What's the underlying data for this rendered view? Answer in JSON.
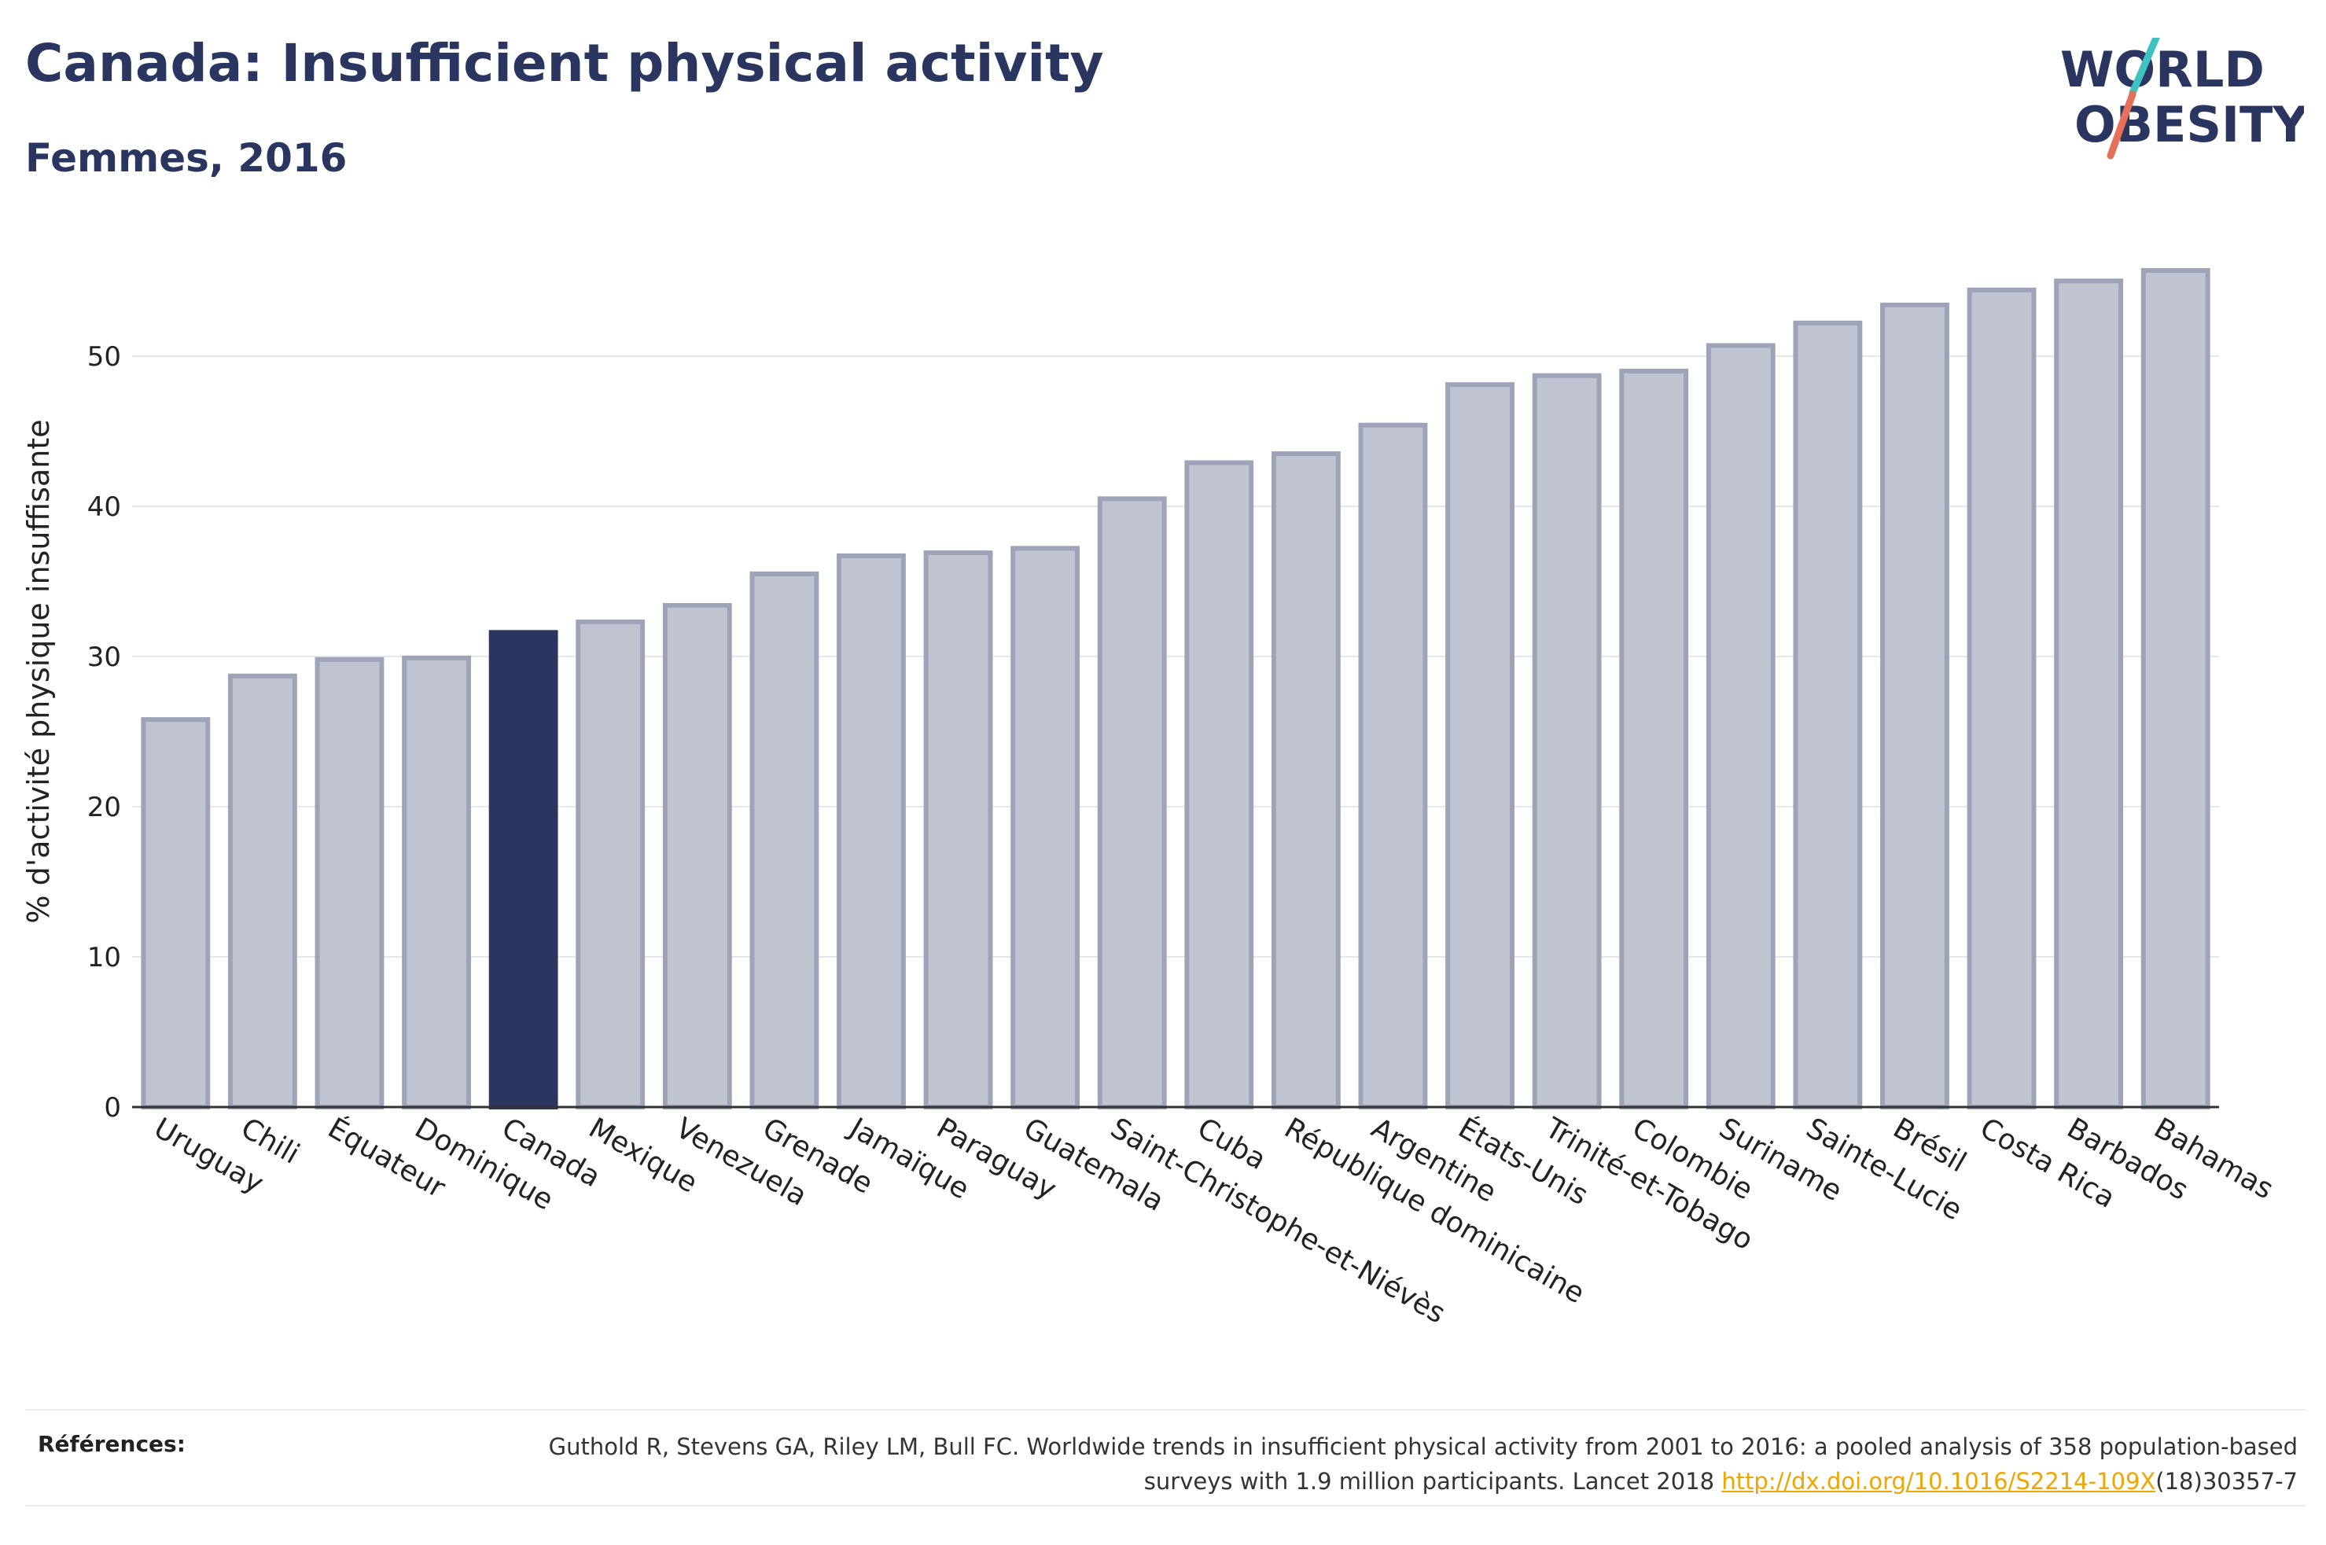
{
  "header": {
    "title": "Canada: Insufficient physical activity",
    "subtitle": "Femmes, 2016"
  },
  "logo": {
    "line1": "WORLD",
    "line2": "OBESITY",
    "accent_colors": [
      "#3ec1c1",
      "#e8705a"
    ]
  },
  "colors": {
    "highlight": "#2a3560",
    "bar_fill": "#c0c3d0",
    "bar_stroke": "#9ea3b8",
    "text": "#2a3560",
    "link": "#f0a500"
  },
  "chart_data": {
    "type": "bar",
    "title": "",
    "xlabel": "",
    "ylabel": "% d'activité physique insuffisante",
    "ylim": [
      0,
      58
    ],
    "yticks": [
      0,
      10,
      20,
      30,
      40,
      50
    ],
    "grid": true,
    "highlight_category": "Canada",
    "categories": [
      "Uruguay",
      "Chili",
      "Équateur",
      "Dominique",
      "Canada",
      "Mexique",
      "Venezuela",
      "Grenade",
      "Jamaïque",
      "Paraguay",
      "Guatemala",
      "Saint-Christophe-et-Niévès",
      "Cuba",
      "République dominicaine",
      "Argentine",
      "États-Unis",
      "Trinité-et-Tobago",
      "Colombie",
      "Suriname",
      "Sainte-Lucie",
      "Brésil",
      "Costa Rica",
      "Barbados",
      "Bahamas"
    ],
    "values": [
      25.8,
      28.7,
      29.8,
      29.9,
      31.6,
      32.3,
      33.4,
      35.5,
      36.7,
      36.9,
      37.2,
      40.5,
      42.9,
      43.5,
      45.4,
      48.1,
      48.7,
      49.0,
      50.7,
      52.2,
      53.4,
      54.4,
      55.0,
      55.7
    ]
  },
  "references": {
    "label": "Références:",
    "text_before": "Guthold R, Stevens GA, Riley LM, Bull FC. Worldwide trends in insufficient physical activity from 2001 to 2016: a pooled analysis of 358 population-based surveys with 1.9 million participants. Lancet 2018 ",
    "link_text": "http://dx.doi.org/10.1016/S2214-109X",
    "text_after": "(18)30357-7"
  }
}
